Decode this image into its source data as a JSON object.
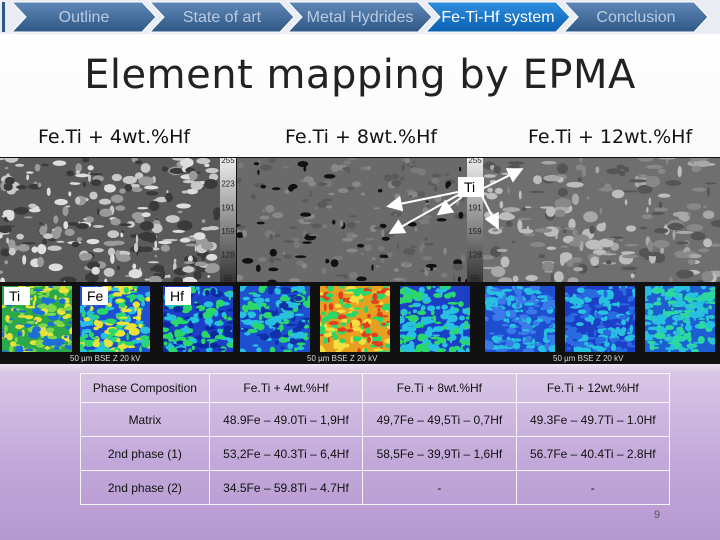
{
  "nav": {
    "tabs": [
      "Outline",
      "State of art",
      "Metal Hydrides",
      "Fe-Ti-Hf system",
      "Conclusion"
    ],
    "active": 3
  },
  "title": "Element mapping by EPMA",
  "samples": [
    "Fe.Ti + 4wt.%Hf",
    "Fe.Ti + 8wt.%Hf",
    "Fe.Ti + 12wt.%Hf"
  ],
  "figure": {
    "annotation": "Ti",
    "map_labels": [
      "Ti",
      "Fe",
      "Hf"
    ],
    "colorbar_ticks": [
      255,
      223,
      191,
      159,
      128,
      96
    ],
    "caption": "50 µm  BSE Z 20 kV"
  },
  "table": {
    "header": [
      "Phase Composition",
      "Fe.Ti + 4wt.%Hf",
      "Fe.Ti + 8wt.%Hf",
      "Fe.Ti + 12wt.%Hf"
    ],
    "rows": [
      [
        "Matrix",
        "48.9Fe – 49.0Ti – 1,9Hf",
        "49,7Fe – 49,5Ti – 0,7Hf",
        "49.3Fe – 49.7Ti – 1.0Hf"
      ],
      [
        "2nd phase (1)",
        "53,2Fe – 40.3Ti – 6,4Hf",
        "58,5Fe – 39,9Ti – 1,6Hf",
        "56.7Fe – 40.4Ti – 2.8Hf"
      ],
      [
        "2nd phase (2)",
        "34.5Fe – 59.8Ti – 4.7Hf",
        "-",
        "-"
      ]
    ]
  },
  "page_number": "9"
}
